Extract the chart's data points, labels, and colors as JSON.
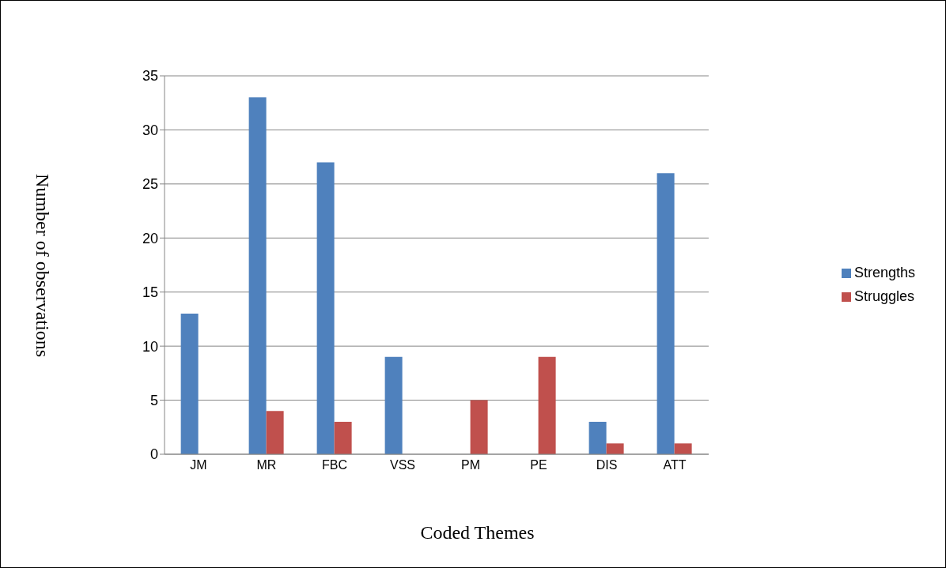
{
  "chart_data": {
    "type": "bar",
    "xlabel": "Coded Themes",
    "ylabel": "Number of observations",
    "categories": [
      "JM",
      "MR",
      "FBC",
      "VSS",
      "PM",
      "PE",
      "DIS",
      "ATT"
    ],
    "series": [
      {
        "name": "Strengths",
        "color": "#4f81bd",
        "values": [
          13,
          33,
          27,
          9,
          0,
          0,
          3,
          26
        ]
      },
      {
        "name": "Struggles",
        "color": "#c0504d",
        "values": [
          0,
          4,
          3,
          0,
          5,
          9,
          1,
          1
        ]
      }
    ],
    "ylim": [
      0,
      35
    ],
    "yticks": [
      0,
      5,
      10,
      15,
      20,
      25,
      30,
      35
    ],
    "grid": "y",
    "legend": "right"
  }
}
